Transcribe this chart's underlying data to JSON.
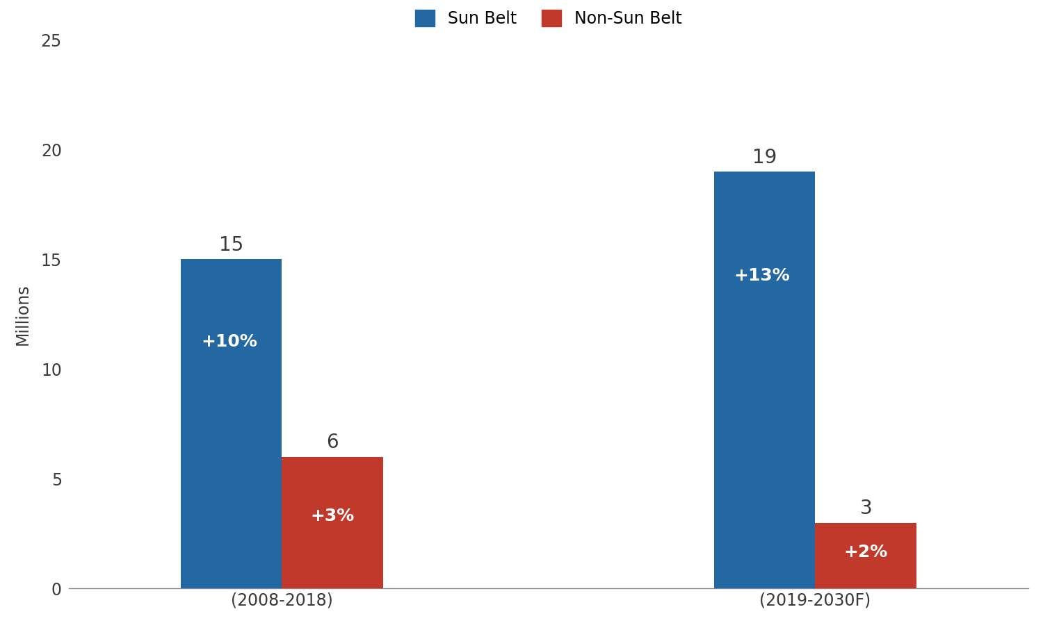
{
  "groups": [
    "(2008-2018)",
    "(2019-2030F)"
  ],
  "sun_belt_values": [
    15,
    19
  ],
  "non_sun_belt_values": [
    6,
    3
  ],
  "sun_belt_labels": [
    "15",
    "19"
  ],
  "non_sun_belt_labels": [
    "6",
    "3"
  ],
  "sun_belt_pct": [
    "+10%",
    "+13%"
  ],
  "non_sun_belt_pct": [
    "+3%",
    "+2%"
  ],
  "sun_belt_color": "#2368a2",
  "non_sun_belt_color": "#c0392b",
  "ylabel": "Millions",
  "ylim": [
    0,
    25
  ],
  "yticks": [
    0,
    5,
    10,
    15,
    20,
    25
  ],
  "legend_sun_belt": "Sun Belt",
  "legend_non_sun_belt": "Non-Sun Belt",
  "bar_width": 0.38,
  "group_centers": [
    0.8,
    2.8
  ],
  "label_fontsize": 20,
  "pct_fontsize": 18,
  "axis_fontsize": 17,
  "tick_fontsize": 17,
  "legend_fontsize": 17,
  "ylabel_fontsize": 17
}
